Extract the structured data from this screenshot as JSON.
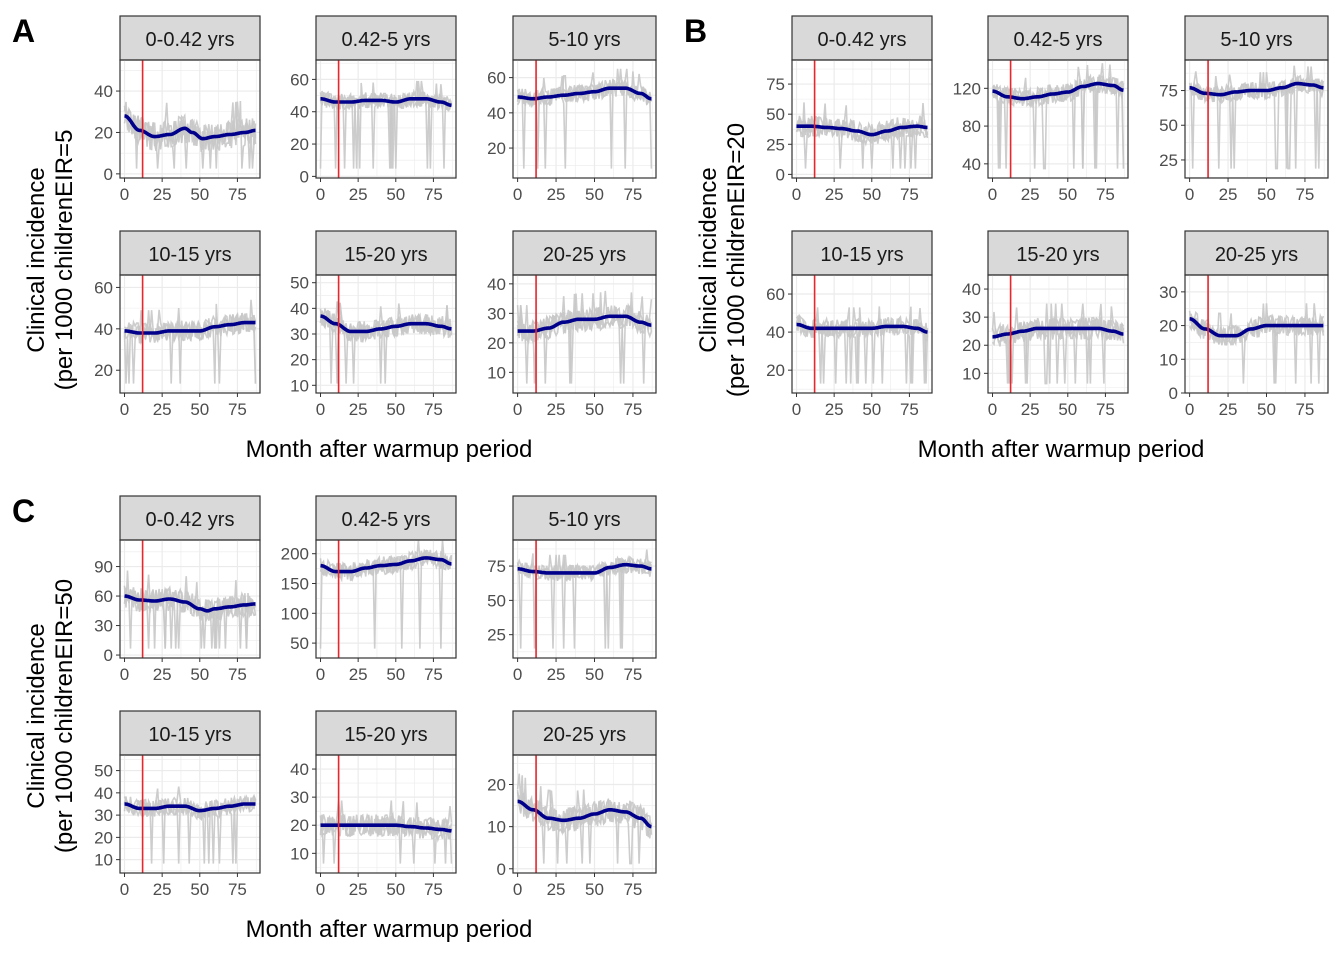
{
  "figure": {
    "x_axis_label": "Month after warmup period",
    "y_axis_label_line1": "Clinical incidence",
    "colors": {
      "smooth_line": "#00008b",
      "raw_lines": "#c8c8c8",
      "intervention_line": "#e8262b",
      "strip_fill": "#d9d9d9",
      "grid": "#ebebeb",
      "panel_border": "#333333"
    },
    "intervention_month": 12
  },
  "chart_data": [
    {
      "panel": "A",
      "type": "line",
      "ylabel_line2": "(per 1000 childrenEIR=5",
      "xlabel": "Month after warmup period",
      "facets": [
        {
          "title": "0-0.42 yrs",
          "xlim": [
            -3,
            90
          ],
          "ylim": [
            -2,
            55
          ],
          "yticks": [
            0,
            20,
            40
          ],
          "xticks": [
            0,
            25,
            50,
            75
          ],
          "smooth": {
            "x": [
              0,
              10,
              20,
              30,
              40,
              45,
              52,
              60,
              70,
              80,
              87
            ],
            "y": [
              28,
              21,
              18,
              19,
              22,
              20,
              17,
              18,
              19,
              20,
              21
            ]
          },
          "noise": 7
        },
        {
          "title": "0.42-5 yrs",
          "xlim": [
            -3,
            90
          ],
          "ylim": [
            -1,
            72
          ],
          "yticks": [
            0,
            20,
            40,
            60
          ],
          "xticks": [
            0,
            25,
            50,
            75
          ],
          "smooth": {
            "x": [
              0,
              10,
              20,
              30,
              40,
              50,
              60,
              70,
              80,
              87
            ],
            "y": [
              48,
              46,
              46,
              47,
              47,
              46,
              48,
              48,
              46,
              44
            ]
          },
          "noise": 5
        },
        {
          "title": "5-10 yrs",
          "xlim": [
            -3,
            90
          ],
          "ylim": [
            3,
            70
          ],
          "yticks": [
            20,
            40,
            60
          ],
          "xticks": [
            0,
            25,
            50,
            75
          ],
          "smooth": {
            "x": [
              0,
              10,
              20,
              30,
              40,
              50,
              60,
              70,
              80,
              87
            ],
            "y": [
              49,
              48,
              49,
              50,
              51,
              52,
              54,
              54,
              51,
              48
            ]
          },
          "noise": 5
        },
        {
          "title": "10-15 yrs",
          "xlim": [
            -3,
            90
          ],
          "ylim": [
            9,
            66
          ],
          "yticks": [
            20,
            40,
            60
          ],
          "xticks": [
            0,
            25,
            50,
            75
          ],
          "smooth": {
            "x": [
              0,
              10,
              20,
              30,
              40,
              50,
              60,
              70,
              80,
              87
            ],
            "y": [
              39,
              38,
              38,
              39,
              39,
              39,
              41,
              42,
              43,
              43
            ]
          },
          "noise": 5
        },
        {
          "title": "15-20 yrs",
          "xlim": [
            -3,
            90
          ],
          "ylim": [
            7,
            53
          ],
          "yticks": [
            10,
            20,
            30,
            40,
            50
          ],
          "xticks": [
            0,
            25,
            50,
            75
          ],
          "smooth": {
            "x": [
              0,
              10,
              20,
              30,
              40,
              50,
              60,
              70,
              80,
              87
            ],
            "y": [
              37,
              34,
              31,
              31,
              32,
              33,
              34,
              34,
              33,
              32
            ]
          },
          "noise": 4
        },
        {
          "title": "20-25 yrs",
          "xlim": [
            -3,
            90
          ],
          "ylim": [
            3,
            43
          ],
          "yticks": [
            10,
            20,
            30,
            40
          ],
          "xticks": [
            0,
            25,
            50,
            75
          ],
          "smooth": {
            "x": [
              0,
              10,
              20,
              30,
              40,
              50,
              60,
              70,
              80,
              87
            ],
            "y": [
              24,
              24,
              25,
              27,
              28,
              28,
              29,
              29,
              27,
              26
            ]
          },
          "noise": 4
        }
      ]
    },
    {
      "panel": "B",
      "type": "line",
      "ylabel_line2": "(per 1000 childrenEIR=20",
      "xlabel": "Month after warmup period",
      "facets": [
        {
          "title": "0-0.42 yrs",
          "xlim": [
            -3,
            90
          ],
          "ylim": [
            -3,
            95
          ],
          "yticks": [
            0,
            25,
            50,
            75
          ],
          "xticks": [
            0,
            25,
            50,
            75
          ],
          "smooth": {
            "x": [
              0,
              10,
              20,
              30,
              40,
              50,
              60,
              70,
              80,
              87
            ],
            "y": [
              40,
              40,
              39,
              38,
              36,
              33,
              36,
              39,
              40,
              39
            ]
          },
          "noise": 9
        },
        {
          "title": "0.42-5 yrs",
          "xlim": [
            -3,
            90
          ],
          "ylim": [
            25,
            150
          ],
          "yticks": [
            40,
            80,
            120
          ],
          "xticks": [
            0,
            25,
            50,
            75
          ],
          "smooth": {
            "x": [
              0,
              10,
              20,
              30,
              40,
              50,
              60,
              70,
              80,
              87
            ],
            "y": [
              117,
              111,
              109,
              111,
              114,
              116,
              122,
              125,
              123,
              118
            ]
          },
          "noise": 10
        },
        {
          "title": "5-10 yrs",
          "xlim": [
            -3,
            90
          ],
          "ylim": [
            12,
            97
          ],
          "yticks": [
            25,
            50,
            75
          ],
          "xticks": [
            0,
            25,
            50,
            75
          ],
          "smooth": {
            "x": [
              0,
              10,
              20,
              30,
              40,
              50,
              60,
              70,
              80,
              87
            ],
            "y": [
              77,
              73,
              72,
              74,
              75,
              75,
              77,
              80,
              79,
              77
            ]
          },
          "noise": 6
        },
        {
          "title": "10-15 yrs",
          "xlim": [
            -3,
            90
          ],
          "ylim": [
            8,
            70
          ],
          "yticks": [
            20,
            40,
            60
          ],
          "xticks": [
            0,
            25,
            50,
            75
          ],
          "smooth": {
            "x": [
              0,
              10,
              20,
              30,
              40,
              50,
              60,
              70,
              80,
              87
            ],
            "y": [
              44,
              42,
              42,
              42,
              42,
              42,
              43,
              43,
              42,
              40
            ]
          },
          "noise": 5
        },
        {
          "title": "15-20 yrs",
          "xlim": [
            -3,
            90
          ],
          "ylim": [
            3,
            45
          ],
          "yticks": [
            10,
            20,
            30,
            40
          ],
          "xticks": [
            0,
            25,
            50,
            75
          ],
          "smooth": {
            "x": [
              0,
              10,
              20,
              30,
              40,
              50,
              60,
              70,
              80,
              87
            ],
            "y": [
              23,
              24,
              25,
              26,
              26,
              26,
              26,
              26,
              25,
              24
            ]
          },
          "noise": 4
        },
        {
          "title": "20-25 yrs",
          "xlim": [
            -3,
            90
          ],
          "ylim": [
            0,
            35
          ],
          "yticks": [
            0,
            10,
            20,
            30
          ],
          "xticks": [
            0,
            25,
            50,
            75
          ],
          "smooth": {
            "x": [
              0,
              10,
              20,
              30,
              40,
              50,
              60,
              70,
              80,
              87
            ],
            "y": [
              22,
              19,
              17,
              17,
              19,
              20,
              20,
              20,
              20,
              20
            ]
          },
          "noise": 3
        }
      ]
    },
    {
      "panel": "C",
      "type": "line",
      "ylabel_line2": "(per 1000 childrenEIR=50",
      "xlabel": "Month after warmup period",
      "facets": [
        {
          "title": "0-0.42 yrs",
          "xlim": [
            -3,
            90
          ],
          "ylim": [
            -3,
            117
          ],
          "yticks": [
            0,
            30,
            60,
            90
          ],
          "xticks": [
            0,
            25,
            50,
            75
          ],
          "smooth": {
            "x": [
              0,
              10,
              20,
              30,
              40,
              50,
              55,
              60,
              70,
              80,
              87
            ],
            "y": [
              60,
              56,
              55,
              57,
              54,
              47,
              45,
              47,
              49,
              51,
              52
            ]
          },
          "noise": 12
        },
        {
          "title": "0.42-5 yrs",
          "xlim": [
            -3,
            90
          ],
          "ylim": [
            25,
            223
          ],
          "yticks": [
            50,
            100,
            150,
            200
          ],
          "xticks": [
            0,
            25,
            50,
            75
          ],
          "smooth": {
            "x": [
              0,
              10,
              20,
              30,
              40,
              50,
              60,
              70,
              80,
              87
            ],
            "y": [
              180,
              170,
              170,
              176,
              180,
              182,
              188,
              193,
              190,
              183
            ]
          },
          "noise": 15
        },
        {
          "title": "5-10 yrs",
          "xlim": [
            -3,
            90
          ],
          "ylim": [
            8,
            94
          ],
          "yticks": [
            25,
            50,
            75
          ],
          "xticks": [
            0,
            25,
            50,
            75
          ],
          "smooth": {
            "x": [
              0,
              10,
              20,
              30,
              40,
              50,
              60,
              70,
              80,
              87
            ],
            "y": [
              73,
              71,
              70,
              70,
              70,
              70,
              74,
              76,
              75,
              73
            ]
          },
          "noise": 6
        },
        {
          "title": "10-15 yrs",
          "xlim": [
            -3,
            90
          ],
          "ylim": [
            4,
            57
          ],
          "yticks": [
            10,
            20,
            30,
            40,
            50
          ],
          "xticks": [
            0,
            25,
            50,
            75
          ],
          "smooth": {
            "x": [
              0,
              10,
              20,
              30,
              40,
              50,
              60,
              70,
              80,
              87
            ],
            "y": [
              35,
              33,
              33,
              34,
              34,
              32,
              33,
              34,
              35,
              35
            ]
          },
          "noise": 4
        },
        {
          "title": "15-20 yrs",
          "xlim": [
            -3,
            90
          ],
          "ylim": [
            3,
            45
          ],
          "yticks": [
            10,
            20,
            30,
            40
          ],
          "xticks": [
            0,
            25,
            50,
            75
          ],
          "smooth": {
            "x": [
              0,
              10,
              20,
              30,
              40,
              50,
              60,
              70,
              80,
              87
            ],
            "y": [
              20,
              20,
              20,
              20,
              20,
              20,
              19.5,
              19,
              18.5,
              18
            ]
          },
          "noise": 4
        },
        {
          "title": "20-25 yrs",
          "xlim": [
            -3,
            90
          ],
          "ylim": [
            -1,
            27
          ],
          "yticks": [
            0,
            10,
            20
          ],
          "xticks": [
            0,
            25,
            50,
            75
          ],
          "smooth": {
            "x": [
              0,
              10,
              20,
              30,
              40,
              50,
              60,
              70,
              80,
              87
            ],
            "y": [
              16,
              14,
              12,
              11.5,
              12,
              13,
              14,
              13.5,
              12,
              10
            ]
          },
          "noise": 3
        }
      ]
    }
  ]
}
